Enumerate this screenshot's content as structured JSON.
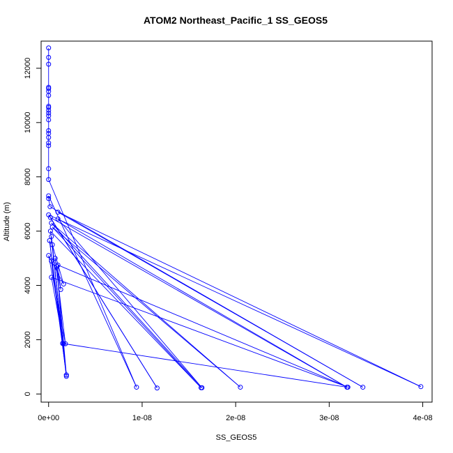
{
  "chart_data": {
    "type": "line",
    "title": "ATOM2 Northeast_Pacific_1 SS_GEOS5",
    "xlabel": "SS_GEOS5",
    "ylabel": "Altitude (m)",
    "xlim": [
      -8e-10,
      4.1e-08
    ],
    "ylim": [
      -300,
      13000
    ],
    "xticks": [
      0,
      1e-08,
      2e-08,
      3e-08,
      4e-08
    ],
    "xtick_labels": [
      "0e+00",
      "1e-08",
      "2e-08",
      "3e-08",
      "4e-08"
    ],
    "yticks": [
      0,
      2000,
      4000,
      6000,
      8000,
      10000,
      12000
    ],
    "ytick_labels": [
      "0",
      "2000",
      "4000",
      "6000",
      "8000",
      "10000",
      "12000"
    ],
    "grid": false,
    "legend": "none",
    "markers": "open circles connected by lines",
    "color": "#0000ff",
    "series": [
      {
        "points": [
          [
            0.0,
            12750
          ],
          [
            0.0,
            12400
          ],
          [
            0.0,
            12150
          ],
          [
            0.0,
            11300
          ],
          [
            0.0,
            11250
          ],
          [
            0.0,
            11150
          ],
          [
            0.0,
            11000
          ],
          [
            0.0,
            10600
          ],
          [
            0.0,
            10550
          ],
          [
            0.0,
            10450
          ],
          [
            0.0,
            10350
          ],
          [
            0.0,
            10250
          ],
          [
            0.0,
            10100
          ],
          [
            0.0,
            9700
          ],
          [
            0.0,
            9600
          ],
          [
            0.0,
            9450
          ],
          [
            0.0,
            9250
          ],
          [
            0.0,
            9150
          ],
          [
            0.0,
            8300
          ],
          [
            0.0,
            7900
          ],
          [
            9.4e-09,
            250
          ],
          [
            0.0,
            7300
          ],
          [
            0.0,
            7200
          ],
          [
            1.6e-10,
            6900
          ],
          [
            3.36e-08,
            250
          ],
          [
            1e-09,
            6700
          ],
          [
            3.98e-08,
            270
          ],
          [
            0.0,
            6600
          ],
          [
            1.16e-08,
            220
          ],
          [
            2e-10,
            6500
          ],
          [
            3.19e-08,
            250
          ],
          [
            1e-09,
            6450
          ],
          [
            1.64e-08,
            230
          ],
          [
            3e-10,
            6300
          ],
          [
            2.05e-08,
            250
          ],
          [
            4e-10,
            6150
          ],
          [
            1.63e-08,
            230
          ],
          [
            2e-10,
            6000
          ],
          [
            1.9e-09,
            700
          ],
          [
            3e-10,
            5800
          ],
          [
            1.9e-09,
            650
          ],
          [
            1e-10,
            5650
          ],
          [
            1.5e-09,
            1870
          ],
          [
            4e-10,
            5500
          ],
          [
            1.6e-09,
            4050
          ],
          [
            0.0,
            5100
          ],
          [
            1.8e-09,
            1850
          ],
          [
            7e-10,
            5000
          ],
          [
            1.3e-09,
            3850
          ],
          [
            1e-09,
            4750
          ],
          [
            3.2e-08,
            250
          ],
          [
            3e-10,
            4300
          ],
          [
            1.6e-09,
            1850
          ],
          [
            3e-10,
            4900
          ],
          [
            1.9e-09,
            700
          ],
          [
            9e-10,
            4700
          ],
          [
            1.5e-09,
            1860
          ],
          [
            3.19e-08,
            250
          ]
        ]
      }
    ]
  }
}
